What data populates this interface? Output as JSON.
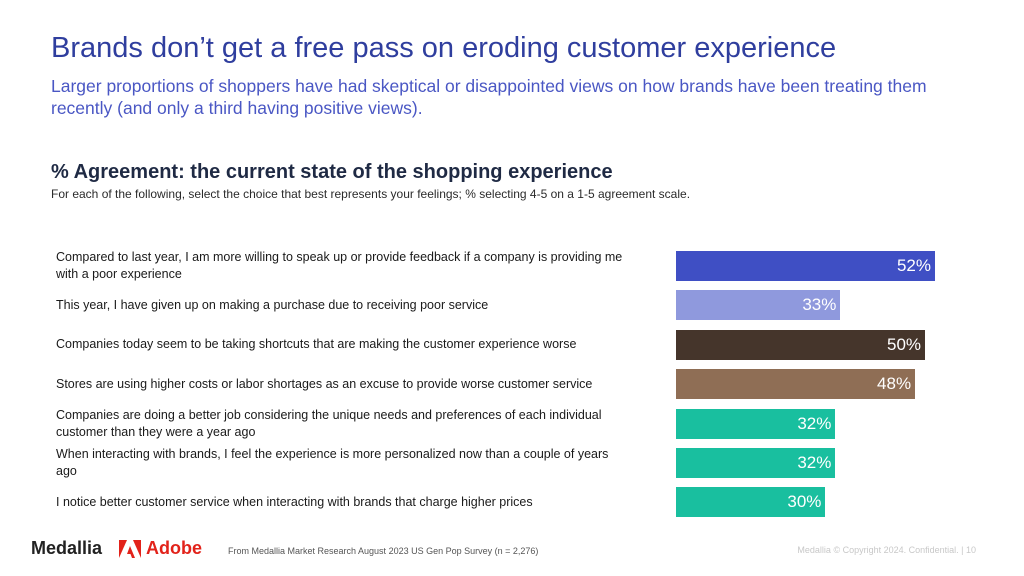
{
  "title": "Brands don’t get a free pass on eroding customer experience",
  "subtitle": "Larger proportions of shoppers have had skeptical or disappointed views on how brands have been treating them recently (and only a third having positive views).",
  "section_title": "% Agreement: the current state of the shopping experience",
  "section_subtitle": "For each of the following, select the choice that best represents your feelings; % selecting 4-5 on a 1-5 agreement scale.",
  "chart_data": {
    "type": "bar",
    "orientation": "horizontal",
    "categories": [
      "Compared to last year, I am more willing to speak up or provide feedback if a company is providing me with a poor experience",
      "This year, I have given up on making a purchase due to receiving poor service",
      "Companies today seem to be taking shortcuts that are making the customer experience worse",
      "Stores are using higher costs or labor shortages as an excuse to provide worse customer service",
      "Companies are doing a better job considering the unique needs and preferences of each individual customer than they were a year ago",
      "When interacting with brands, I feel the experience is more personalized now than a couple of years ago",
      "I notice better customer service when interacting with brands that charge higher prices"
    ],
    "values": [
      52,
      33,
      50,
      48,
      32,
      32,
      30
    ],
    "value_labels": [
      "52%",
      "33%",
      "50%",
      "48%",
      "32%",
      "32%",
      "30%"
    ],
    "colors": [
      "#3f4fc4",
      "#8f99dd",
      "#45352b",
      "#8f6e55",
      "#19bf9f",
      "#19bf9f",
      "#19bf9f"
    ],
    "xlim": [
      0,
      52
    ],
    "grid": false,
    "legend": "none"
  },
  "footer": {
    "brand1": "Medallia",
    "brand2": "Adobe",
    "source": "From Medallia Market Research August 2023 US Gen Pop Survey (n = 2,276)",
    "copyright": "Medallia © Copyright 2024. Confidential.  |  10"
  },
  "colors": {
    "title": "#2f3e9e",
    "subtitle": "#4a57c4",
    "adobe_red": "#e2221a"
  },
  "icons": {
    "adobe_logo": "adobe-logo-icon"
  }
}
